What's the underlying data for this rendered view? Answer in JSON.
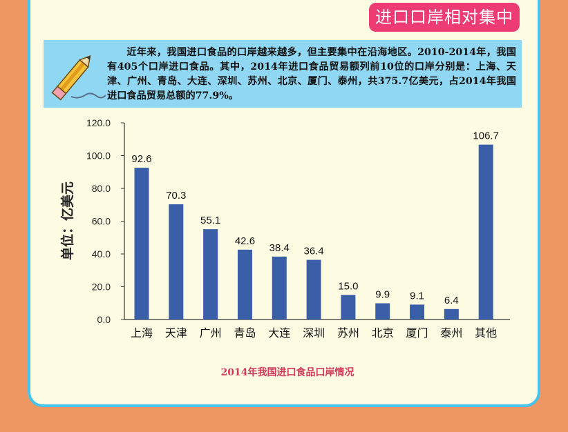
{
  "header": {
    "badge_title": "进口口岸相对集中"
  },
  "note": {
    "text": "近年来，我国进口食品的口岸越来越多，但主要集中在沿海地区。2010-2014年，我国有405个口岸进口食品。其中，2014年进口食品贸易额列前10位的口岸分别是：上海、天津、广州、青岛、大连、深圳、苏州、北京、厦门、泰州，共375.7亿美元，占2014年我国进口食品贸易总额的77.9%。"
  },
  "colors": {
    "page_bg": "#ef9763",
    "panel_bg": "#fefbe3",
    "panel_border": "#45c3ea",
    "badge_bg": "#ec3c73",
    "note_bg": "#8fd7f2",
    "bar": "#3a5fa8",
    "caption": "#d23a5c"
  },
  "chart_data": {
    "type": "bar",
    "categories": [
      "上海",
      "天津",
      "广州",
      "青岛",
      "大连",
      "深圳",
      "苏州",
      "北京",
      "厦门",
      "泰州",
      "其他"
    ],
    "values": [
      92.6,
      70.3,
      55.1,
      42.6,
      38.4,
      36.4,
      15.0,
      9.9,
      9.1,
      6.4,
      106.7
    ],
    "value_labels": [
      "92.6",
      "70.3",
      "55.1",
      "42.6",
      "38.4",
      "36.4",
      "15.0",
      "9.9",
      "9.1",
      "6.4",
      "106.7"
    ],
    "ylabel": "单位：亿美元",
    "yticks": [
      "0.0",
      "20.0",
      "40.0",
      "60.0",
      "80.0",
      "100.0",
      "120.0"
    ],
    "ylim": [
      0,
      120
    ],
    "caption": "2014年我国进口食品口岸情况",
    "grid": false
  }
}
